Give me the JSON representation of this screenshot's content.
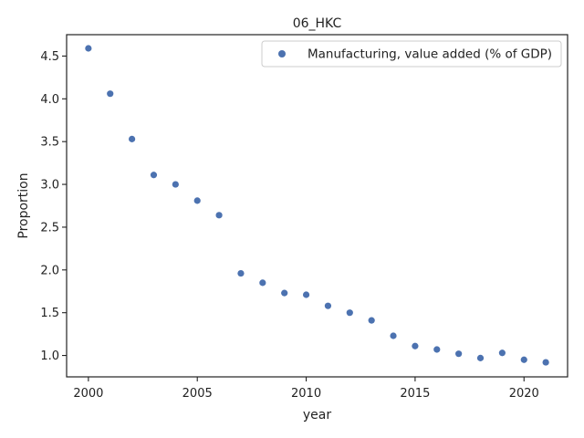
{
  "chart_data": {
    "type": "scatter",
    "title": "06_HKC",
    "xlabel": "year",
    "ylabel": "Proportion",
    "xlim": [
      1999.0,
      2022.0
    ],
    "ylim": [
      0.75,
      4.75
    ],
    "xticks": [
      2000,
      2005,
      2010,
      2015,
      2020
    ],
    "yticks": [
      1.0,
      1.5,
      2.0,
      2.5,
      3.0,
      3.5,
      4.0,
      4.5
    ],
    "grid": false,
    "legend_position": "top-right",
    "series": [
      {
        "name": "Manufacturing, value added (% of GDP)",
        "color": "#4c72b0",
        "marker": "circle",
        "x": [
          2000,
          2001,
          2002,
          2003,
          2004,
          2005,
          2006,
          2007,
          2008,
          2009,
          2010,
          2011,
          2012,
          2013,
          2014,
          2015,
          2016,
          2017,
          2018,
          2019,
          2020,
          2021
        ],
        "y": [
          4.59,
          4.06,
          3.53,
          3.11,
          3.0,
          2.81,
          2.64,
          1.96,
          1.85,
          1.73,
          1.71,
          1.58,
          1.5,
          1.41,
          1.23,
          1.11,
          1.07,
          1.02,
          0.97,
          1.03,
          0.95,
          0.92
        ]
      }
    ]
  }
}
